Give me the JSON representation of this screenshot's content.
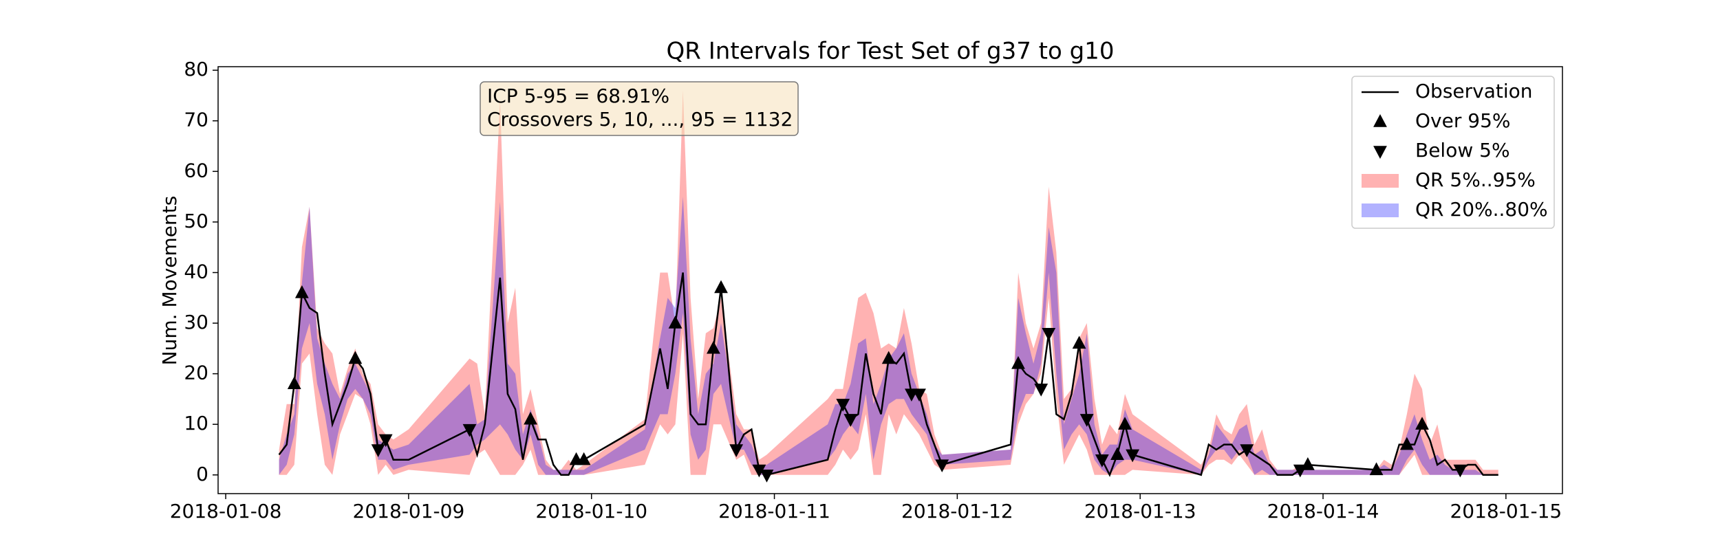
{
  "chart_data": {
    "type": "line",
    "title": "QR Intervals for Test Set of g37 to g10",
    "ylabel": "Num. Movements",
    "annotations": [
      "ICP 5-95 = 68.91%",
      "Crossovers 5, 10, ..., 95 = 1132"
    ],
    "legend": "upper right",
    "grid": false,
    "xlim": [
      "2018-01-07 23:00",
      "2018-01-15 07:25"
    ],
    "xticks": [
      "2018-01-08",
      "2018-01-09",
      "2018-01-10",
      "2018-01-11",
      "2018-01-12",
      "2018-01-13",
      "2018-01-14",
      "2018-01-15"
    ],
    "ylim": [
      -3.7,
      80.7
    ],
    "yticks": [
      0,
      10,
      20,
      30,
      40,
      50,
      60,
      70,
      80
    ],
    "x": [
      "2018-01-08 07:00",
      "2018-01-08 08:00",
      "2018-01-08 09:00",
      "2018-01-08 10:00",
      "2018-01-08 11:00",
      "2018-01-08 12:00",
      "2018-01-08 13:00",
      "2018-01-08 14:00",
      "2018-01-08 15:00",
      "2018-01-08 16:00",
      "2018-01-08 17:00",
      "2018-01-08 18:00",
      "2018-01-08 19:00",
      "2018-01-08 20:00",
      "2018-01-08 21:00",
      "2018-01-08 22:00",
      "2018-01-09 00:00",
      "2018-01-09 08:00",
      "2018-01-09 09:00",
      "2018-01-09 10:00",
      "2018-01-09 12:00",
      "2018-01-09 13:00",
      "2018-01-09 14:00",
      "2018-01-09 15:00",
      "2018-01-09 16:00",
      "2018-01-09 17:00",
      "2018-01-09 18:00",
      "2018-01-09 19:00",
      "2018-01-09 20:00",
      "2018-01-09 21:00",
      "2018-01-09 22:00",
      "2018-01-09 23:00",
      "2018-01-10 07:00",
      "2018-01-10 09:00",
      "2018-01-10 10:00",
      "2018-01-10 11:00",
      "2018-01-10 12:00",
      "2018-01-10 13:00",
      "2018-01-10 14:00",
      "2018-01-10 15:00",
      "2018-01-10 16:00",
      "2018-01-10 17:00",
      "2018-01-10 19:00",
      "2018-01-10 20:00",
      "2018-01-10 21:00",
      "2018-01-10 22:00",
      "2018-01-10 23:00",
      "2018-01-11 07:00",
      "2018-01-11 08:00",
      "2018-01-11 09:00",
      "2018-01-11 10:00",
      "2018-01-11 11:00",
      "2018-01-11 12:00",
      "2018-01-11 13:00",
      "2018-01-11 14:00",
      "2018-01-11 15:00",
      "2018-01-11 16:00",
      "2018-01-11 17:00",
      "2018-01-11 18:00",
      "2018-01-11 19:00",
      "2018-01-11 20:00",
      "2018-01-11 21:00",
      "2018-01-11 22:00",
      "2018-01-12 07:00",
      "2018-01-12 08:00",
      "2018-01-12 09:00",
      "2018-01-12 10:00",
      "2018-01-12 11:00",
      "2018-01-12 12:00",
      "2018-01-12 13:00",
      "2018-01-12 14:00",
      "2018-01-12 15:00",
      "2018-01-12 16:00",
      "2018-01-12 17:00",
      "2018-01-12 18:00",
      "2018-01-12 19:00",
      "2018-01-12 20:00",
      "2018-01-12 21:00",
      "2018-01-12 22:00",
      "2018-01-12 23:00",
      "2018-01-13 08:00",
      "2018-01-13 09:00",
      "2018-01-13 10:00",
      "2018-01-13 11:00",
      "2018-01-13 12:00",
      "2018-01-13 13:00",
      "2018-01-13 14:00",
      "2018-01-13 15:00",
      "2018-01-13 16:00",
      "2018-01-13 17:00",
      "2018-01-13 18:00",
      "2018-01-13 20:00",
      "2018-01-13 21:00",
      "2018-01-13 22:00",
      "2018-01-14 07:00",
      "2018-01-14 08:00",
      "2018-01-14 09:00",
      "2018-01-14 10:00",
      "2018-01-14 11:00",
      "2018-01-14 12:00",
      "2018-01-14 13:00",
      "2018-01-14 14:00",
      "2018-01-14 15:00",
      "2018-01-14 16:00",
      "2018-01-14 17:00",
      "2018-01-14 18:00",
      "2018-01-14 19:00",
      "2018-01-14 20:00",
      "2018-01-14 21:00",
      "2018-01-14 23:00"
    ],
    "series": [
      {
        "name": "Observation",
        "kind": "line",
        "color": "#000000",
        "values": [
          4,
          6,
          18,
          36,
          33,
          32,
          20,
          10,
          14,
          18,
          23,
          21,
          16,
          5,
          7,
          3,
          3,
          9,
          4,
          10,
          39,
          16,
          13,
          3,
          11,
          7,
          7,
          2,
          0,
          0,
          3,
          3,
          10,
          25,
          17,
          30,
          40,
          12,
          10,
          10,
          25,
          37,
          5,
          8,
          9,
          1,
          0,
          3,
          9,
          14,
          11,
          12,
          24,
          16,
          12,
          23,
          22,
          24,
          16,
          16,
          10,
          6,
          2,
          6,
          22,
          20,
          19,
          17,
          28,
          12,
          11,
          16,
          26,
          11,
          7,
          3,
          0,
          4,
          10,
          4,
          0,
          6,
          5,
          6,
          6,
          4,
          5,
          4,
          3,
          2,
          0,
          0,
          1,
          2,
          1,
          1,
          1,
          6,
          6,
          6,
          10,
          7,
          2,
          3,
          1,
          1,
          2,
          2,
          0,
          0
        ]
      },
      {
        "name": "Over 95%",
        "kind": "marker",
        "marker": "up",
        "color": "#000000",
        "x": [
          "2018-01-08 09:00",
          "2018-01-08 10:00",
          "2018-01-08 17:00",
          "2018-01-09 16:00",
          "2018-01-09 22:00",
          "2018-01-09 23:00",
          "2018-01-10 11:00",
          "2018-01-10 16:00",
          "2018-01-10 17:00",
          "2018-01-11 15:00",
          "2018-01-12 08:00",
          "2018-01-12 16:00",
          "2018-01-12 21:00",
          "2018-01-12 22:00",
          "2018-01-13 22:00",
          "2018-01-14 07:00",
          "2018-01-14 11:00",
          "2018-01-14 13:00"
        ],
        "values": [
          18,
          36,
          23,
          11,
          3,
          3,
          30,
          25,
          37,
          23,
          22,
          26,
          4,
          10,
          2,
          1,
          6,
          10
        ]
      },
      {
        "name": "Below 5%",
        "kind": "marker",
        "marker": "down",
        "color": "#000000",
        "x": [
          "2018-01-08 20:00",
          "2018-01-08 21:00",
          "2018-01-09 08:00",
          "2018-01-10 19:00",
          "2018-01-10 22:00",
          "2018-01-10 23:00",
          "2018-01-11 09:00",
          "2018-01-11 10:00",
          "2018-01-11 18:00",
          "2018-01-11 19:00",
          "2018-01-11 22:00",
          "2018-01-12 11:00",
          "2018-01-12 12:00",
          "2018-01-12 17:00",
          "2018-01-12 19:00",
          "2018-01-12 23:00",
          "2018-01-13 14:00",
          "2018-01-13 21:00",
          "2018-01-14 18:00"
        ],
        "values": [
          5,
          7,
          9,
          5,
          1,
          0,
          14,
          11,
          16,
          16,
          2,
          17,
          28,
          11,
          3,
          4,
          5,
          1,
          1
        ]
      },
      {
        "name": "QR 5%..95%",
        "kind": "band",
        "color": "#ff0000",
        "alpha": 0.3,
        "lower": [
          0,
          0,
          2,
          22,
          24,
          12,
          2,
          0,
          8,
          12,
          16,
          15,
          10,
          0,
          2,
          0,
          1,
          0,
          4,
          5,
          0,
          0,
          0,
          2,
          5,
          0,
          0,
          0,
          0,
          0,
          0,
          0,
          2,
          10,
          8,
          10,
          28,
          0,
          0,
          0,
          10,
          10,
          3,
          4,
          0,
          0,
          0,
          0,
          2,
          5,
          3,
          5,
          12,
          0,
          0,
          12,
          8,
          12,
          10,
          8,
          5,
          2,
          1,
          2,
          10,
          14,
          16,
          20,
          35,
          15,
          2,
          5,
          8,
          5,
          0,
          0,
          0,
          0,
          0,
          1,
          0,
          2,
          3,
          3,
          2,
          4,
          2,
          0,
          0,
          0,
          0,
          0,
          0,
          0,
          0,
          0,
          0,
          0,
          2,
          4,
          0,
          0,
          0,
          0,
          0,
          0,
          0,
          0,
          0,
          0
        ],
        "upper": [
          5,
          14,
          14,
          45,
          53,
          29,
          26,
          24,
          16,
          21,
          25,
          20,
          18,
          10,
          8,
          7,
          9,
          23,
          22,
          12,
          74,
          30,
          37,
          12,
          17,
          10,
          3,
          1,
          1,
          3,
          1,
          2,
          11,
          40,
          40,
          30,
          76,
          35,
          15,
          28,
          29,
          35,
          12,
          9,
          9,
          3,
          4,
          15,
          17,
          17,
          26,
          35,
          36,
          32,
          25,
          26,
          25,
          33,
          26,
          17,
          16,
          8,
          4,
          5,
          40,
          30,
          25,
          30,
          57,
          44,
          15,
          17,
          27,
          30,
          15,
          6,
          10,
          8,
          16,
          12,
          2,
          5,
          12,
          9,
          8,
          12,
          14,
          6,
          9,
          3,
          1,
          1,
          2,
          1,
          1,
          3,
          2,
          5,
          12,
          20,
          17,
          6,
          10,
          3,
          3,
          3,
          3,
          3,
          1,
          1
        ]
      },
      {
        "name": "QR 20%..80%",
        "kind": "band",
        "color": "#0000ff",
        "alpha": 0.3,
        "lower": [
          0,
          2,
          8,
          25,
          30,
          18,
          12,
          3,
          10,
          15,
          17,
          15,
          12,
          3,
          3,
          1,
          2,
          4,
          6,
          7,
          10,
          8,
          5,
          3,
          8,
          2,
          0,
          0,
          0,
          0,
          0,
          0,
          5,
          12,
          12,
          20,
          32,
          8,
          3,
          5,
          16,
          18,
          5,
          5,
          2,
          0,
          0,
          3,
          5,
          8,
          10,
          8,
          16,
          3,
          10,
          14,
          15,
          15,
          12,
          10,
          8,
          3,
          2,
          3,
          12,
          16,
          16,
          22,
          40,
          20,
          5,
          8,
          10,
          8,
          3,
          1,
          0,
          2,
          3,
          3,
          0,
          3,
          5,
          5,
          3,
          5,
          4,
          0,
          1,
          0,
          0,
          0,
          0,
          0,
          0,
          0,
          0,
          0,
          3,
          5,
          2,
          0,
          0,
          0,
          0,
          0,
          0,
          0,
          0,
          0
        ],
        "upper": [
          3,
          8,
          12,
          38,
          53,
          27,
          22,
          18,
          15,
          20,
          22,
          19,
          16,
          7,
          6,
          5,
          6,
          18,
          10,
          11,
          54,
          22,
          20,
          8,
          13,
          8,
          2,
          1,
          1,
          1,
          1,
          1,
          9,
          27,
          35,
          33,
          55,
          27,
          12,
          20,
          22,
          30,
          10,
          8,
          6,
          2,
          2,
          10,
          14,
          14,
          18,
          26,
          27,
          14,
          18,
          23,
          25,
          28,
          20,
          16,
          12,
          6,
          4,
          5,
          35,
          28,
          22,
          28,
          49,
          40,
          10,
          15,
          20,
          28,
          10,
          4,
          6,
          6,
          13,
          9,
          1,
          4,
          10,
          8,
          6,
          9,
          10,
          4,
          5,
          2,
          1,
          1,
          1,
          1,
          1,
          2,
          1,
          4,
          8,
          12,
          7,
          3,
          4,
          2,
          1,
          1,
          1,
          1,
          0,
          0
        ]
      }
    ]
  }
}
